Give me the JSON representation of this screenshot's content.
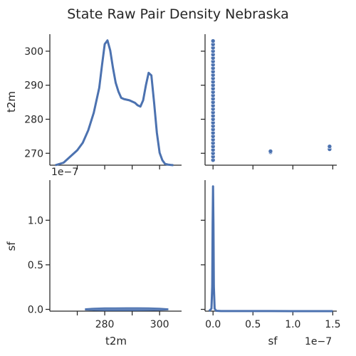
{
  "chart_data": {
    "type": "pairplot",
    "title": "State Raw Pair Density Nebraska",
    "variables": [
      "t2m",
      "sf"
    ],
    "color": "#4c72b0",
    "grid": false,
    "panels": [
      {
        "id": "t2m_kde",
        "type": "line",
        "x_variable": "t2m",
        "xlim": [
          260,
          308
        ],
        "ylim": [
          0,
          1.05
        ],
        "x": [
          262,
          265,
          268,
          270,
          272,
          274,
          276,
          278,
          279,
          280,
          281,
          282,
          283,
          284,
          285,
          286,
          287,
          288,
          289,
          290,
          291,
          292,
          293,
          294,
          295,
          296,
          297,
          298,
          299,
          300,
          301,
          302,
          303,
          304,
          305
        ],
        "y": [
          0.0,
          0.02,
          0.08,
          0.12,
          0.18,
          0.28,
          0.42,
          0.62,
          0.8,
          0.97,
          1.0,
          0.92,
          0.78,
          0.66,
          0.59,
          0.54,
          0.53,
          0.525,
          0.52,
          0.51,
          0.5,
          0.48,
          0.47,
          0.52,
          0.64,
          0.74,
          0.72,
          0.5,
          0.26,
          0.1,
          0.04,
          0.01,
          0.005,
          0.002,
          0.0
        ]
      },
      {
        "id": "sf_vs_t2m",
        "type": "scatter",
        "x_variable": "sf",
        "y_variable": "t2m",
        "xlim": [
          -1e-08,
          1.55e-07
        ],
        "ylim": [
          266.5,
          305
        ],
        "x_offset_label": "",
        "points": [
          {
            "x": 0,
            "y": 268.0
          },
          {
            "x": 0,
            "y": 269.0
          },
          {
            "x": 0,
            "y": 270.0
          },
          {
            "x": 0,
            "y": 271.0
          },
          {
            "x": 0,
            "y": 272.0
          },
          {
            "x": 0,
            "y": 273.0
          },
          {
            "x": 0,
            "y": 274.0
          },
          {
            "x": 0,
            "y": 275.0
          },
          {
            "x": 0,
            "y": 276.0
          },
          {
            "x": 0,
            "y": 277.0
          },
          {
            "x": 0,
            "y": 278.0
          },
          {
            "x": 0,
            "y": 279.0
          },
          {
            "x": 0,
            "y": 280.0
          },
          {
            "x": 0,
            "y": 281.0
          },
          {
            "x": 0,
            "y": 282.0
          },
          {
            "x": 0,
            "y": 283.0
          },
          {
            "x": 0,
            "y": 284.0
          },
          {
            "x": 0,
            "y": 285.0
          },
          {
            "x": 0,
            "y": 286.0
          },
          {
            "x": 0,
            "y": 287.0
          },
          {
            "x": 0,
            "y": 288.0
          },
          {
            "x": 0,
            "y": 289.0
          },
          {
            "x": 0,
            "y": 290.0
          },
          {
            "x": 0,
            "y": 291.0
          },
          {
            "x": 0,
            "y": 292.0
          },
          {
            "x": 0,
            "y": 293.0
          },
          {
            "x": 0,
            "y": 294.0
          },
          {
            "x": 0,
            "y": 295.0
          },
          {
            "x": 0,
            "y": 296.0
          },
          {
            "x": 0,
            "y": 297.0
          },
          {
            "x": 0,
            "y": 298.0
          },
          {
            "x": 0,
            "y": 299.0
          },
          {
            "x": 0,
            "y": 300.0
          },
          {
            "x": 0,
            "y": 301.0
          },
          {
            "x": 0,
            "y": 302.0
          },
          {
            "x": 0,
            "y": 303.0
          },
          {
            "x": 7.2e-08,
            "y": 270.3
          },
          {
            "x": 7.2e-08,
            "y": 270.6
          },
          {
            "x": 1.46e-07,
            "y": 271.2
          },
          {
            "x": 1.46e-07,
            "y": 272.0
          }
        ]
      },
      {
        "id": "t2m_vs_sf_kde",
        "type": "area",
        "x_variable": "t2m",
        "y_variable": "sf",
        "xlim": [
          260,
          308
        ],
        "ylim": [
          -0.02,
          1.45
        ],
        "y_offset_label": "1e−7",
        "x": [
          273,
          276,
          280,
          284,
          288,
          292,
          296,
          300,
          303
        ],
        "y_upper": [
          0.006,
          0.012,
          0.016,
          0.016,
          0.017,
          0.017,
          0.016,
          0.012,
          0.005
        ],
        "y_lower": [
          -0.006,
          -0.01,
          -0.012,
          -0.012,
          -0.012,
          -0.012,
          -0.011,
          -0.009,
          -0.004
        ]
      },
      {
        "id": "sf_kde",
        "type": "line",
        "x_variable": "sf",
        "xlim": [
          -1e-08,
          1.55e-07
        ],
        "ylim": [
          0,
          1.05
        ],
        "x_offset_label": "1e−7",
        "x": [
          -5e-09,
          -2e-09,
          -1e-09,
          -5e-10,
          0,
          5e-10,
          1e-09,
          2e-09,
          4e-09,
          1e-08,
          5e-08,
          1e-07,
          1.5e-07
        ],
        "y": [
          0,
          0.02,
          0.2,
          0.7,
          1.0,
          0.7,
          0.2,
          0.02,
          0.003,
          0.001,
          0.0005,
          0.0003,
          0.0002
        ]
      }
    ],
    "axes": {
      "t2m_ticks": [
        270,
        280,
        290,
        300
      ],
      "t2m_bottom_ticks": [
        280,
        300
      ],
      "sf_y_ticks": [
        {
          "v": 0.0,
          "label": "0.0"
        },
        {
          "v": 0.5,
          "label": "0.5"
        },
        {
          "v": 1.0,
          "label": "1.0"
        }
      ],
      "sf_x_ticks": [
        {
          "v": 0,
          "label": "0.0"
        },
        {
          "v": 5e-08,
          "label": "0.5"
        },
        {
          "v": 1e-07,
          "label": "1.0"
        },
        {
          "v": 1.5e-07,
          "label": "1.5"
        }
      ],
      "xlabel_left": "t2m",
      "xlabel_right": "sf",
      "ylabel_top": "t2m",
      "ylabel_bottom": "sf"
    }
  }
}
